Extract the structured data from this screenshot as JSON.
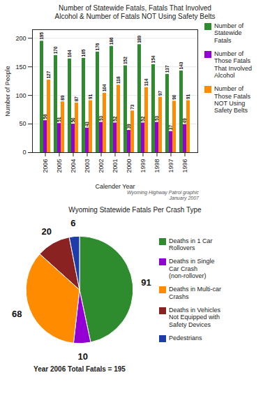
{
  "chart_data": [
    {
      "type": "bar",
      "title": "Number of Statewide Fatals, Fatals That Involved\nAlcohol & Number of Fatals NOT Using Safety Belts",
      "xlabel": "Calender Year",
      "ylabel": "Number of People",
      "categories": [
        "2006",
        "2005",
        "2004",
        "2003",
        "2002",
        "2001",
        "2000",
        "1999",
        "1998",
        "1997",
        "1996"
      ],
      "series": [
        {
          "name": "Number of\nStatewide\nFatals",
          "color": "#2e8b2e",
          "values": [
            195,
            170,
            164,
            165,
            176,
            186,
            152,
            189,
            154,
            137,
            143
          ]
        },
        {
          "name": "Number of\nThose Fatals\nThat Involved\nAlcohol",
          "color": "#9400d3",
          "values": [
            56,
            51,
            50,
            43,
            53,
            52,
            39,
            52,
            53,
            37,
            49
          ]
        },
        {
          "name": "Number of\nThose Fatals\nNOT Using\nSafety Belts",
          "color": "#ff8c00",
          "values": [
            127,
            89,
            87,
            91,
            104,
            118,
            73,
            114,
            97,
            90,
            91
          ]
        }
      ],
      "ylim": [
        0,
        215
      ],
      "yticks": [
        0,
        50,
        100,
        150,
        200
      ],
      "grid": true,
      "data_labels": true,
      "legend": "right",
      "annotations": [
        "Wyoming Highway Patrol graphic\nJanuary 2007"
      ]
    },
    {
      "type": "pie",
      "title": "Wyoming Statewide Fatals Per Crash Type",
      "categories": [
        "Deaths in 1 Car\nRollovers",
        "Deaths in Single\nCar Crash\n(non-rollover)",
        "Deaths in Multi-car\nCrashs",
        "Deaths in Vehicles\nNot Equipped with\nSafety Devices",
        "Pedestrians"
      ],
      "values": [
        91,
        10,
        68,
        20,
        6
      ],
      "colors": [
        "#2e8b2e",
        "#9400d3",
        "#ff8c00",
        "#8b2222",
        "#1e3caa"
      ],
      "data_labels": true,
      "legend": "right",
      "annotations": [
        "Year 2006 Total Fatals = 195"
      ]
    }
  ]
}
